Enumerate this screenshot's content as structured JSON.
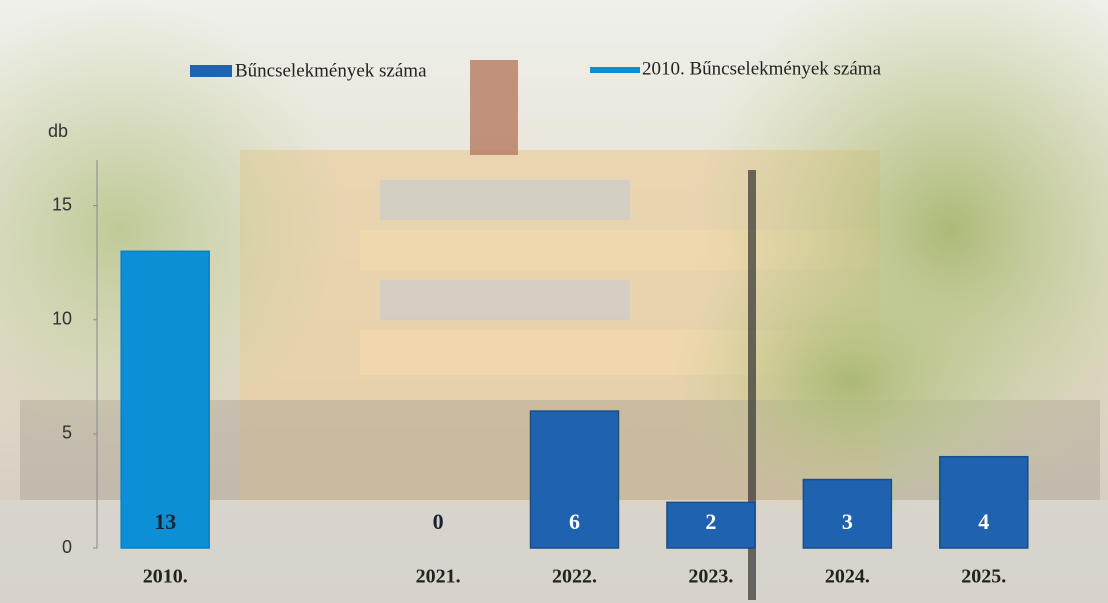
{
  "chart_data": {
    "type": "bar",
    "categories": [
      "2010.",
      null,
      "2021.",
      "2022.",
      "2023.",
      "2024.",
      "2025."
    ],
    "series": [
      {
        "name": "Bűncselekmények száma",
        "color": "#1f63b0",
        "values": [
          null,
          null,
          0,
          6,
          2,
          3,
          4
        ]
      },
      {
        "name": "2010. Bűncselekmények száma",
        "color": "#0d8fd6",
        "values": [
          13,
          null,
          null,
          null,
          null,
          null,
          null
        ]
      }
    ],
    "y_label": "db",
    "ylim": [
      0,
      17
    ],
    "yticks": [
      0,
      5,
      10,
      15
    ],
    "grid": false
  }
}
